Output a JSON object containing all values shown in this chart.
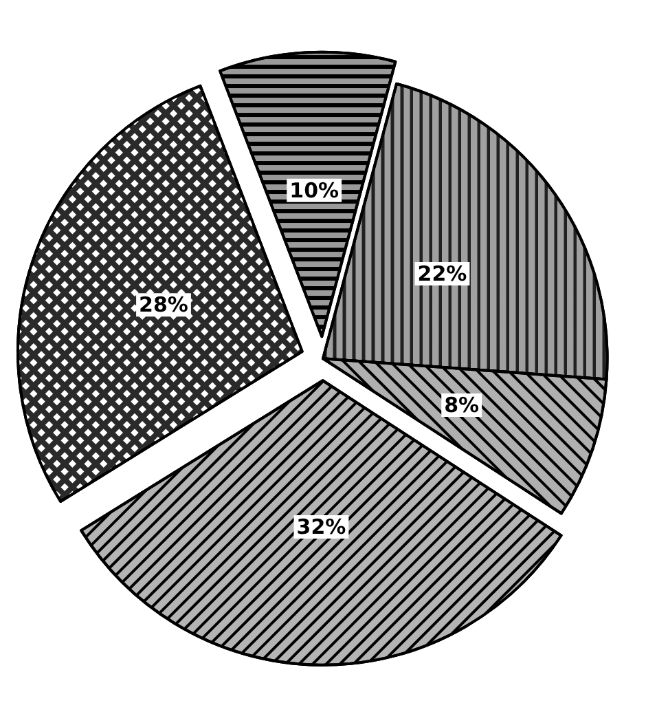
{
  "chart_data": {
    "type": "pie",
    "categories": [
      null,
      null,
      null,
      null,
      null
    ],
    "values": [
      10,
      22,
      8,
      32,
      28
    ],
    "value_labels": [
      "10%",
      "22%",
      "8%",
      "32%",
      "28%"
    ],
    "colors": [
      "#9a9a9a",
      "#a0a0a0",
      "#b0b0b0",
      "#b4b4b4",
      "#2a2a2a"
    ]
  }
}
